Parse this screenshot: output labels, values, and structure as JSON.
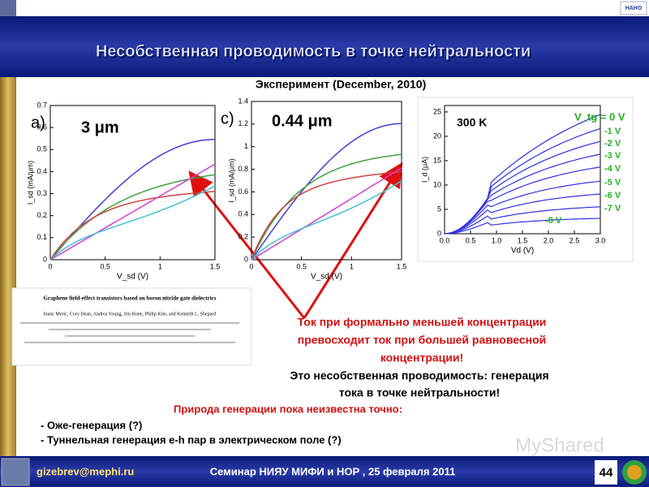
{
  "header": {
    "title": "Несобственная проводимость в точке нейтральности",
    "logo": "НАНО"
  },
  "experiment_label": "Эксперимент (December, 2010)",
  "plots": [
    {
      "panel": "a)",
      "annotation": "3 μm",
      "y_label": "I_sd (mA/μm)",
      "x_label": "V_sd (V)",
      "yticks": [
        "0",
        "0.1",
        "0.2",
        "0.3",
        "0.4",
        "0.5",
        "0.6",
        "0.7"
      ],
      "xticks": [
        "0",
        "0.5",
        "1",
        "1.5"
      ]
    },
    {
      "panel": "c)",
      "annotation": "0.44 μm",
      "y_label": "I_sd (mA/μm)",
      "x_label": "V_sd (V)",
      "yticks": [
        "0",
        "0.2",
        "0.4",
        "0.6",
        "0.8",
        "1",
        "1.2",
        "1.4"
      ],
      "xticks": [
        "0",
        "0.5",
        "1",
        "1.5"
      ]
    },
    {
      "annotation": "300 K",
      "y_label": "I_d (μA)",
      "x_label": "Vd (V)",
      "yticks": [
        "0",
        "5",
        "10",
        "15",
        "20",
        "25"
      ],
      "xticks": [
        "0.0",
        "0.5",
        "1.0",
        "1.5",
        "2.0",
        "2.5",
        "3.0"
      ],
      "curve_labels": [
        "V_tg = 0 V",
        "-1 V",
        "-2 V",
        "-3 V",
        "-4 V",
        "-5 V",
        "-6 V",
        "-7 V",
        "-8 V"
      ]
    }
  ],
  "paper": {
    "title": "Graphene field-effect transistors based on boron nitride gate dielectrics",
    "authors": "Inanc Meric, Cory Dean, Andrea Young, Jim Hone, Philip Kim, and Kenneth L. Shepard"
  },
  "callout": [
    "Ток при формально меньшей концентрации",
    "превосходит ток при большей равновесной",
    "концентрации!"
  ],
  "conclusion": [
    "Это несобственная проводимость:  генерация",
    "тока в точке нейтральности!"
  ],
  "nature": {
    "heading": "Природа генерации пока неизвестна точно:",
    "items": [
      "- Оже-генерация (?)",
      "- Туннельная генерация e-h пар в электрическом поле (?)"
    ]
  },
  "watermark": "MyShared",
  "footer": {
    "email": "gizebrev@mephi.ru",
    "seminar": "Семинар НИЯУ МИФИ и НОР ,  25 февраля 2011",
    "page": "44"
  }
}
